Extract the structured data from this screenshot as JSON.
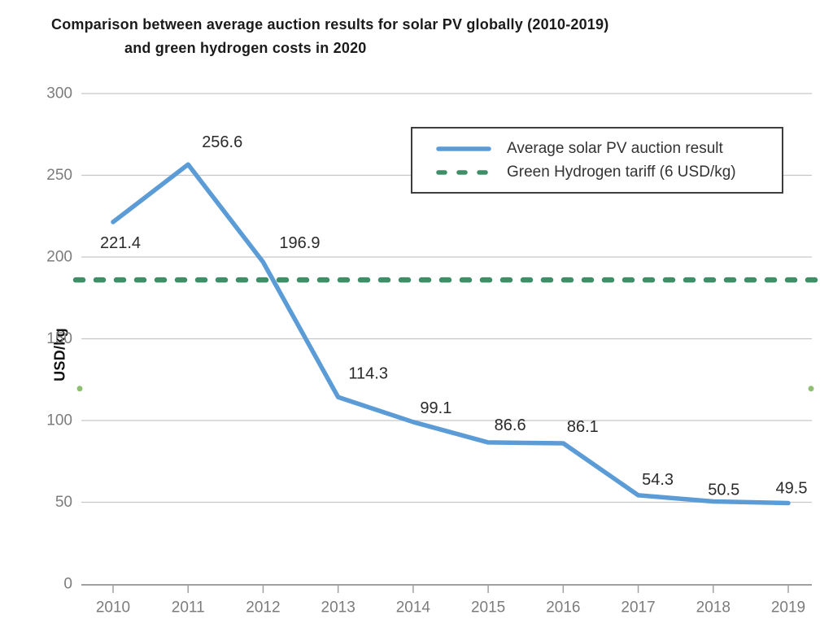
{
  "title": {
    "line1": "Comparison between average auction results for solar PV globally (2010-2019)",
    "line2": "and green hydrogen costs in 2020"
  },
  "y_axis_title": "USD/kg",
  "legend": {
    "items": [
      {
        "label": "Average solar PV auction result",
        "style": "solid",
        "color": "#5b9cd6"
      },
      {
        "label": "Green Hydrogen tariff (6 USD/kg)",
        "style": "dashed",
        "color": "#3e8e68"
      }
    ]
  },
  "chart_data": {
    "type": "line",
    "title": "Comparison between average auction results for solar PV globally (2010-2019) and green hydrogen costs in 2020",
    "ylabel": "USD/kg",
    "ylim": [
      0,
      300
    ],
    "yticks": [
      0,
      50,
      100,
      150,
      200,
      250,
      300
    ],
    "grid": true,
    "legend_position": "upper-right",
    "x": [
      "2010",
      "2011",
      "2012",
      "2013",
      "2014",
      "2015",
      "2016",
      "2017",
      "2018",
      "2019"
    ],
    "series": [
      {
        "name": "Average solar PV auction result",
        "color": "#5b9cd6",
        "values": [
          221.4,
          256.6,
          196.9,
          114.3,
          99.1,
          86.6,
          86.1,
          54.3,
          50.5,
          49.5
        ],
        "point_labels": [
          "221.4",
          "256.6",
          "196.9",
          "114.3",
          "99.1",
          "86.6",
          "86.1",
          "54.3",
          "50.5",
          "49.5"
        ]
      }
    ],
    "reference_line": {
      "name": "Green Hydrogen tariff (6 USD/kg)",
      "tariff_value_usd_per_kg": 6,
      "plotted_level": 186,
      "style": "dashed",
      "color": "#3e8e68"
    },
    "edge_dots": {
      "approx_level": 119.5,
      "color": "#8fbf72"
    },
    "colors": {
      "gridline": "#c7c7c7",
      "axis": "#a0a0a0",
      "tick_label": "#7c7c7c",
      "data_label": "#2b2b2b"
    }
  }
}
